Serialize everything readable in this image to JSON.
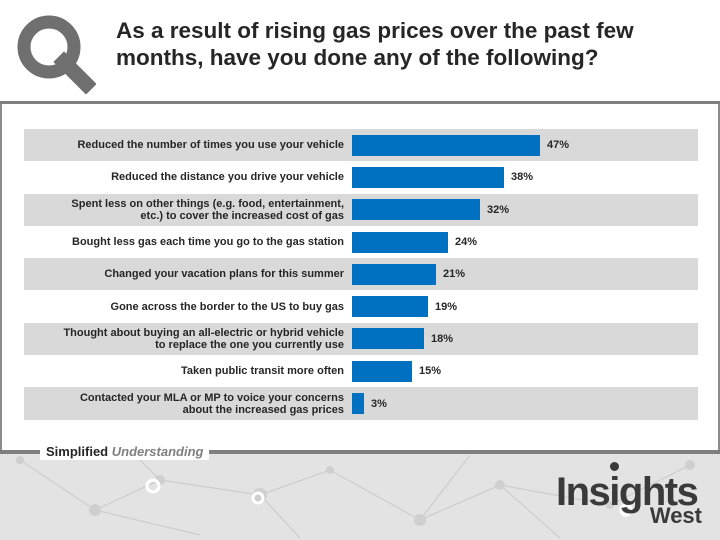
{
  "title": "As a result of rising gas prices over the past few months, have you done any of the following?",
  "tagline": {
    "part1": "Simplified",
    "part2": "Understanding"
  },
  "brand": {
    "name": "Insights",
    "sub": "West"
  },
  "colors": {
    "bar": "#0070c0",
    "row_shade": "#d9d9d9",
    "row_plain": "#ffffff",
    "text": "#262626",
    "accent_gray": "#7f7f7f"
  },
  "icons": {
    "header_logo": "magnifier-q-icon"
  },
  "chart_data": {
    "type": "bar",
    "orientation": "horizontal",
    "title": "As a result of rising gas prices over the past few months, have you done any of the following?",
    "xlim": [
      0,
      100
    ],
    "value_suffix": "%",
    "grid": false,
    "legend": "none",
    "categories": [
      "Reduced the number of times you use your vehicle",
      "Reduced the distance you drive your vehicle",
      "Spent less on other things (e.g. food, entertainment, etc.) to cover the increased cost of gas",
      "Bought less gas each time you go to the gas station",
      "Changed your vacation plans for this summer",
      "Gone across the border to the US to buy gas",
      "Thought about buying an all-electric or hybrid vehicle to replace the one you currently use",
      "Taken public transit more often",
      "Contacted your MLA or MP to voice your concerns about the increased gas prices"
    ],
    "label_lines": [
      [
        "Reduced the number of times you use your vehicle"
      ],
      [
        "Reduced the distance you drive your vehicle"
      ],
      [
        "Spent less on other things (e.g. food, entertainment,",
        "etc.) to cover the increased cost of gas"
      ],
      [
        "Bought less gas each time you go to the gas station"
      ],
      [
        "Changed your vacation plans for this summer"
      ],
      [
        "Gone across the border to the US to buy gas"
      ],
      [
        "Thought about buying an all-electric or hybrid vehicle",
        "to replace the one you currently use"
      ],
      [
        "Taken public transit more often"
      ],
      [
        "Contacted your MLA or MP to voice your concerns",
        "about the increased gas prices"
      ]
    ],
    "values": [
      47,
      38,
      32,
      24,
      21,
      19,
      18,
      15,
      3
    ],
    "data_labels": [
      "47%",
      "38%",
      "32%",
      "24%",
      "21%",
      "19%",
      "18%",
      "15%",
      "3%"
    ]
  }
}
